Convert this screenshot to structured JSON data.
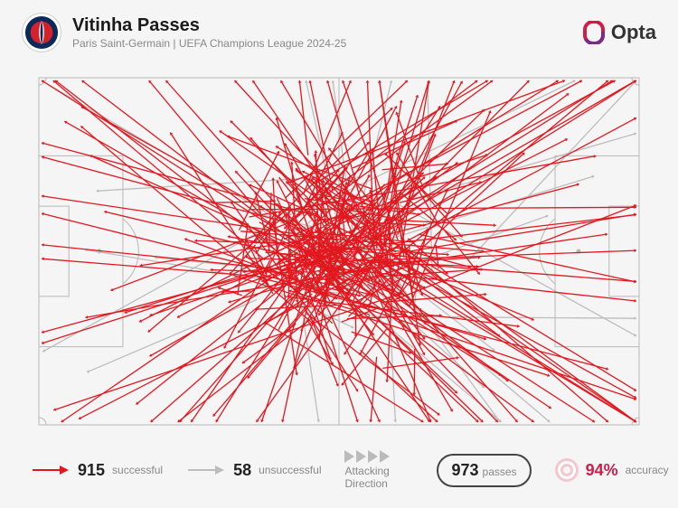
{
  "header": {
    "title": "Vitinha Passes",
    "subtitle": "Paris Saint-Germain | UEFA Champions League 2024-25",
    "brand": "Opta",
    "club_badge_colors": {
      "outer": "#0a2a5c",
      "inner": "#d4212a",
      "stripe": "#ffffff"
    },
    "brand_color": "#cc1e4a"
  },
  "pitch": {
    "width_u": 120,
    "height_u": 80,
    "line_color": "#b8b8b8",
    "line_width": 1,
    "background": "#f5f5f5"
  },
  "passes": {
    "successful_color": "#e2181f",
    "unsuccessful_color": "#bdbdbd",
    "stroke_width": 1.3,
    "arrowhead": 3.2,
    "successful_count": 915,
    "unsuccessful_count": 58,
    "total": 973,
    "accuracy_pct": 94,
    "seed": 7
  },
  "legend": {
    "successful_label": "successful",
    "unsuccessful_label": "unsuccessful",
    "attacking_label": "Attacking Direction",
    "passes_label": "passes",
    "accuracy_label": "accuracy"
  }
}
